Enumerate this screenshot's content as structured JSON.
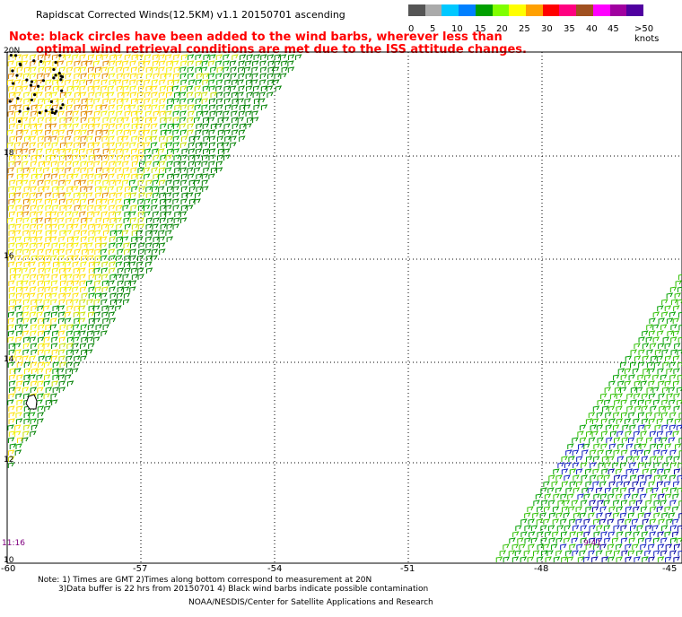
{
  "header": {
    "title": "Rapidscat Corrected Winds(12.5KM) v1.1 20150701 ascending"
  },
  "note": {
    "line1": "Note: black circles have been added to the wind barbs, wherever less than",
    "line2": "optimal wind retrieval conditions are met due to the ISS attitude changes."
  },
  "legend": {
    "labels": [
      "0",
      "5",
      "10",
      "15",
      "20",
      "25",
      "30",
      "35",
      "40",
      "45",
      ">50 knots"
    ],
    "colors": [
      "#555555",
      "#aaaaaa",
      "#00c8ff",
      "#0080ff",
      "#00a000",
      "#80ff00",
      "#ffff00",
      "#ffa000",
      "#ff0000",
      "#ff0080",
      "#a05020",
      "#ff00ff",
      "#a000a0",
      "#5000a0"
    ]
  },
  "axes": {
    "lat_labels": [
      "20N",
      "18",
      "16",
      "14",
      "12",
      "10"
    ],
    "lon_labels": [
      "-60",
      "-57",
      "-54",
      "-51",
      "-48",
      "-45"
    ]
  },
  "times": {
    "left": "11:16",
    "right": "9:41"
  },
  "footer": {
    "line1": "Note: 1) Times are GMT 2)Times along bottom correspond to measurement at 20N",
    "line2": "3)Data buffer is 22 hrs from 20150701 4) Black wind barbs indicate possible contamination",
    "line3": "NOAA/NESDIS/Center for Satellite Applications and Research"
  }
}
